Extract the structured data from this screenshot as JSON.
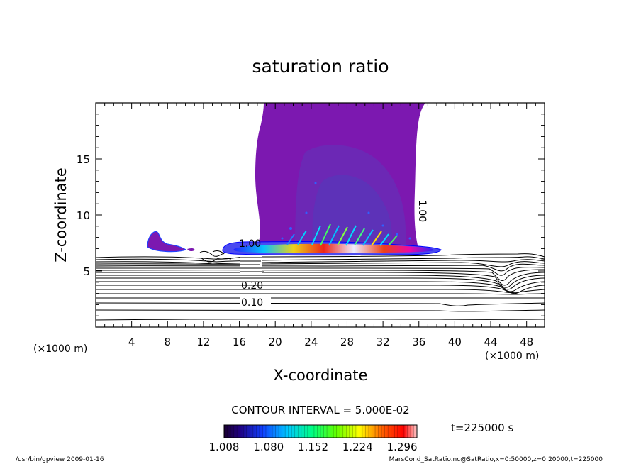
{
  "chart_data": {
    "type": "contour",
    "title": "saturation ratio",
    "xlabel": "X-coordinate",
    "ylabel": "Z-coordinate",
    "x_unit": "(×1000 m)",
    "z_unit": "(×1000 m)",
    "xlim": [
      0,
      50
    ],
    "ylim": [
      0,
      20
    ],
    "x_ticks": [
      "4",
      "8",
      "12",
      "16",
      "20",
      "24",
      "28",
      "32",
      "36",
      "40",
      "44",
      "48"
    ],
    "y_ticks": [
      "5",
      "10",
      "15"
    ],
    "contour_interval": "CONTOUR INTERVAL = 5.000E-02",
    "contour_labels": [
      "1.00",
      "1.00",
      "0.20",
      "0.10"
    ],
    "colorbar": {
      "min": 1.008,
      "max": 1.32,
      "tick_labels": [
        "1.008",
        "1.080",
        "1.152",
        "1.224",
        "1.296"
      ]
    },
    "time_label": "t=225000 s",
    "grid": false
  },
  "footer": {
    "left": "/usr/bin/gpview   2009-01-16",
    "right": "MarsCond_SatRatio.nc@SatRatio,x=0:50000,z=0:20000,t=225000"
  },
  "colors": {
    "plume": "#7c18b0",
    "plume_core": "#6a2ab6",
    "plume_inner": "#5a34b8",
    "line": "#000000"
  }
}
